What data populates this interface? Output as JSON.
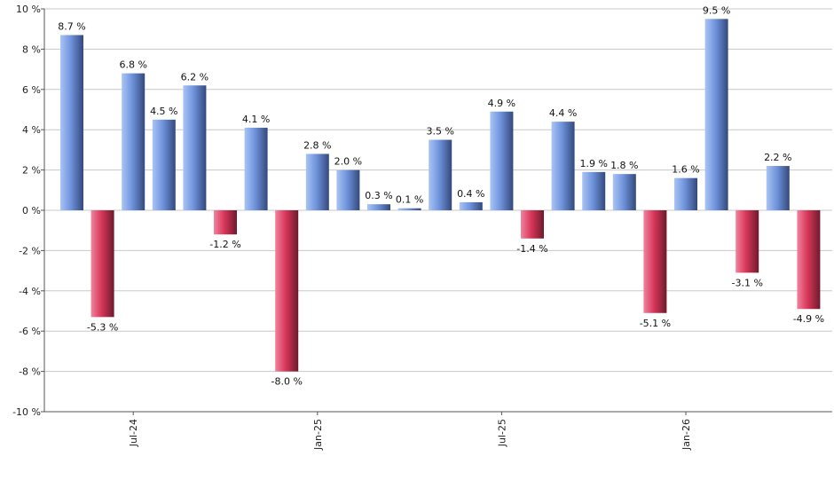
{
  "chart_data": {
    "type": "bar",
    "title": "",
    "xlabel": "",
    "ylabel": "",
    "ylim": [
      -10,
      10
    ],
    "grid": true,
    "unit_suffix": " %",
    "y_ticks": [
      10,
      8,
      6,
      4,
      2,
      0,
      -2,
      -4,
      -6,
      -8,
      -10
    ],
    "y_tick_labels": [
      "10 %",
      "8 %",
      "6 %",
      "4 %",
      "2 %",
      "0 %",
      "-2 %",
      "-4 %",
      "-6 %",
      "-8 %",
      "-10 %"
    ],
    "x_tick_labels": [
      {
        "label": "Jul-24",
        "index": 2
      },
      {
        "label": "Jan-25",
        "index": 8
      },
      {
        "label": "Jul-25",
        "index": 14
      },
      {
        "label": "Jan-26",
        "index": 20
      }
    ],
    "values": [
      8.7,
      -5.3,
      6.8,
      4.5,
      6.2,
      -1.2,
      4.1,
      -8.0,
      2.8,
      2.0,
      0.3,
      0.1,
      3.5,
      0.4,
      4.9,
      -1.4,
      4.4,
      1.9,
      1.8,
      -5.1,
      1.6,
      9.5,
      -3.1,
      2.2,
      -4.9
    ],
    "data_labels": [
      "8.7 %",
      "-5.3 %",
      "6.8 %",
      "4.5 %",
      "6.2 %",
      "-1.2 %",
      "4.1 %",
      "-8.0 %",
      "2.8 %",
      "2.0 %",
      "0.3 %",
      "0.1 %",
      "3.5 %",
      "0.4 %",
      "4.9 %",
      "-1.4 %",
      "4.4 %",
      "1.9 %",
      "1.8 %",
      "-5.1 %",
      "1.6 %",
      "9.5 %",
      "-3.1 %",
      "2.2 %",
      "-4.9 %"
    ],
    "colors": {
      "positive_light": "#a9c4f5",
      "positive_mid": "#6f93dc",
      "positive_dark": "#34497c",
      "negative_light": "#f1839c",
      "negative_mid": "#d8365a",
      "negative_dark": "#6e1a2c",
      "grid": "#c8c8c8",
      "axis": "#555555"
    }
  }
}
